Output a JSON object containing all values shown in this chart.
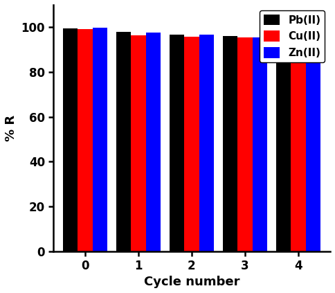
{
  "categories": [
    0,
    1,
    2,
    3,
    4
  ],
  "pb_values": [
    99.5,
    97.8,
    96.7,
    96.2,
    94.8
  ],
  "cu_values": [
    99.2,
    96.5,
    95.8,
    95.3,
    93.2
  ],
  "zn_values": [
    99.7,
    97.5,
    96.7,
    95.5,
    92.5
  ],
  "pb_color": "#000000",
  "cu_color": "#ff0000",
  "zn_color": "#0000ff",
  "pb_label": "Pb(II)",
  "cu_label": "Cu(II)",
  "zn_label": "Zn(II)",
  "xlabel": "Cycle number",
  "ylabel": "% R",
  "ylim": [
    0,
    110
  ],
  "yticks": [
    0,
    20,
    40,
    60,
    80,
    100
  ],
  "bar_width": 0.28,
  "legend_fontsize": 11,
  "axis_fontsize": 13,
  "tick_fontsize": 12,
  "background_color": "#ffffff",
  "figsize": [
    4.84,
    4.23
  ],
  "dpi": 100
}
